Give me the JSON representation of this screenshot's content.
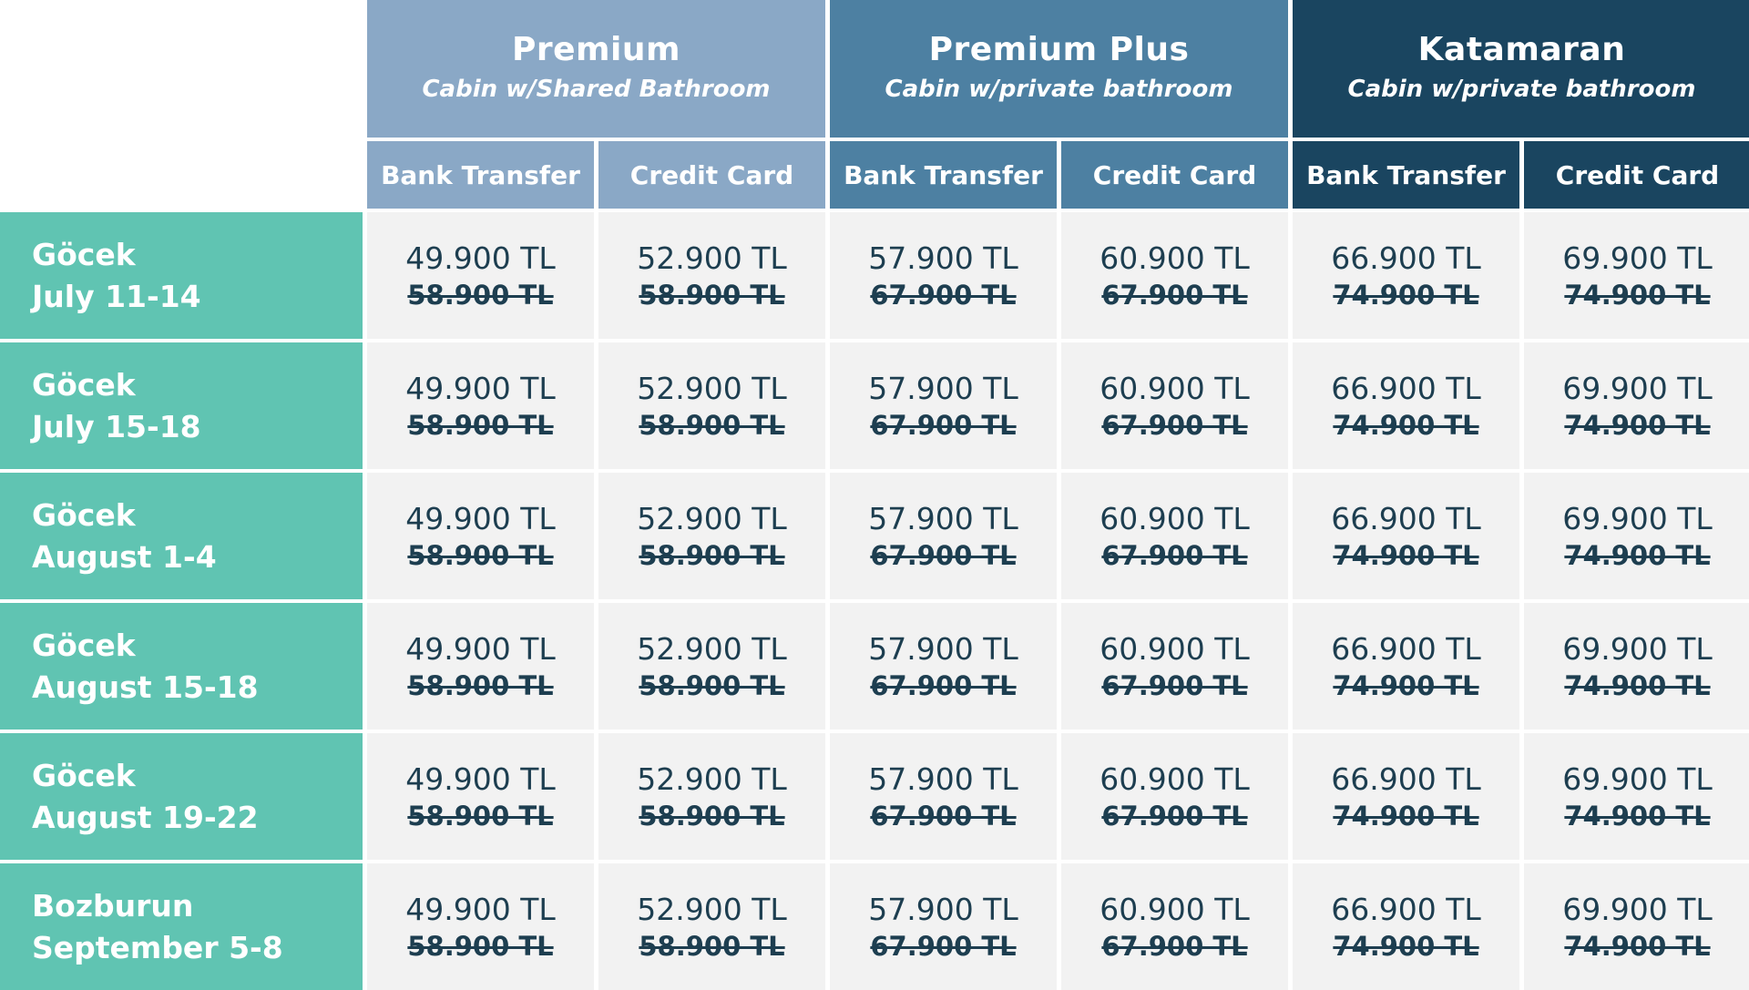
{
  "colors": {
    "premium": "#8aa8c6",
    "premium_plus": "#4d80a2",
    "katamaran": "#1a4560",
    "date_column": "#60c4b2",
    "cell_background": "#f2f2f2",
    "price_text": "#1d3e50"
  },
  "tiers": [
    {
      "name": "Premium",
      "subtitle": "Cabin w/Shared Bathroom"
    },
    {
      "name": "Premium Plus",
      "subtitle": "Cabin w/private bathroom"
    },
    {
      "name": "Katamaran",
      "subtitle": "Cabin w/private bathroom"
    }
  ],
  "payment_methods": [
    "Bank Transfer",
    "Credit Card",
    "Bank Transfer",
    "Credit Card",
    "Bank Transfer",
    "Credit Card"
  ],
  "rows": [
    {
      "location": "Göcek",
      "dates": "July 11-14",
      "prices": [
        {
          "now": "49.900 TL",
          "old": "58.900 TL"
        },
        {
          "now": "52.900 TL",
          "old": "58.900 TL"
        },
        {
          "now": "57.900 TL",
          "old": "67.900 TL"
        },
        {
          "now": "60.900 TL",
          "old": "67.900 TL"
        },
        {
          "now": "66.900 TL",
          "old": "74.900 TL"
        },
        {
          "now": "69.900 TL",
          "old": "74.900 TL"
        }
      ]
    },
    {
      "location": "Göcek",
      "dates": "July 15-18",
      "prices": [
        {
          "now": "49.900 TL",
          "old": "58.900 TL"
        },
        {
          "now": "52.900 TL",
          "old": "58.900 TL"
        },
        {
          "now": "57.900 TL",
          "old": "67.900 TL"
        },
        {
          "now": "60.900 TL",
          "old": "67.900 TL"
        },
        {
          "now": "66.900 TL",
          "old": "74.900 TL"
        },
        {
          "now": "69.900 TL",
          "old": "74.900 TL"
        }
      ]
    },
    {
      "location": "Göcek",
      "dates": "August 1-4",
      "prices": [
        {
          "now": "49.900 TL",
          "old": "58.900 TL"
        },
        {
          "now": "52.900 TL",
          "old": "58.900 TL"
        },
        {
          "now": "57.900 TL",
          "old": "67.900 TL"
        },
        {
          "now": "60.900 TL",
          "old": "67.900 TL"
        },
        {
          "now": "66.900 TL",
          "old": "74.900 TL"
        },
        {
          "now": "69.900 TL",
          "old": "74.900 TL"
        }
      ]
    },
    {
      "location": "Göcek",
      "dates": "August 15-18",
      "prices": [
        {
          "now": "49.900 TL",
          "old": "58.900 TL"
        },
        {
          "now": "52.900 TL",
          "old": "58.900 TL"
        },
        {
          "now": "57.900 TL",
          "old": "67.900 TL"
        },
        {
          "now": "60.900 TL",
          "old": "67.900 TL"
        },
        {
          "now": "66.900 TL",
          "old": "74.900 TL"
        },
        {
          "now": "69.900 TL",
          "old": "74.900 TL"
        }
      ]
    },
    {
      "location": "Göcek",
      "dates": "August 19-22",
      "prices": [
        {
          "now": "49.900 TL",
          "old": "58.900 TL"
        },
        {
          "now": "52.900 TL",
          "old": "58.900 TL"
        },
        {
          "now": "57.900 TL",
          "old": "67.900 TL"
        },
        {
          "now": "60.900 TL",
          "old": "67.900 TL"
        },
        {
          "now": "66.900 TL",
          "old": "74.900 TL"
        },
        {
          "now": "69.900 TL",
          "old": "74.900 TL"
        }
      ]
    },
    {
      "location": "Bozburun",
      "dates": "September 5-8",
      "prices": [
        {
          "now": "49.900 TL",
          "old": "58.900 TL"
        },
        {
          "now": "52.900 TL",
          "old": "58.900 TL"
        },
        {
          "now": "57.900 TL",
          "old": "67.900 TL"
        },
        {
          "now": "60.900 TL",
          "old": "67.900 TL"
        },
        {
          "now": "66.900 TL",
          "old": "74.900 TL"
        },
        {
          "now": "69.900 TL",
          "old": "74.900 TL"
        }
      ]
    }
  ]
}
